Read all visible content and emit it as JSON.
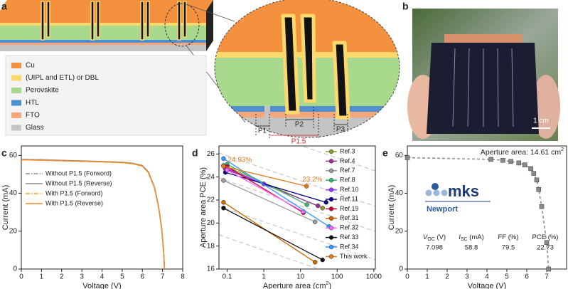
{
  "panel_labels": [
    "a",
    "b",
    "c",
    "d",
    "e"
  ],
  "panel_a": {
    "legend": [
      {
        "label": "Cu",
        "color": "#f4913f"
      },
      {
        "label": "(UIPL and ETL) or DBL",
        "color": "#fcd96a"
      },
      {
        "label": "Perovskite",
        "color": "#a9d98c"
      },
      {
        "label": "HTL",
        "color": "#4f8fd0"
      },
      {
        "label": "FTO",
        "color": "#f4a77a"
      },
      {
        "label": "Glass",
        "color": "#c4c4c4"
      }
    ],
    "scribes": [
      "P1",
      "P2",
      "P1.5",
      "P3"
    ]
  },
  "panel_b": {
    "scale_bar": "1 cm"
  },
  "chart_data": [
    {
      "type": "line",
      "xlabel": "Voltage (V)",
      "ylabel": "Current (mA)",
      "xlim": [
        0,
        8
      ],
      "xticks": [
        0,
        1,
        2,
        3,
        4,
        5,
        6,
        7,
        8
      ],
      "ylim": [
        0,
        65
      ],
      "yticks": [
        0,
        20,
        40,
        60
      ],
      "legend": "upper left",
      "x": [
        0,
        1,
        2,
        3,
        4,
        5,
        5.5,
        6,
        6.3,
        6.6,
        6.8,
        6.95,
        7.05,
        7.1
      ],
      "series": [
        {
          "name": "Without P1.5 (Forword)",
          "color": "#8c8c8c",
          "dash": "dashdot",
          "values": [
            57.8,
            57.6,
            57.3,
            57.0,
            56.7,
            56.3,
            55.8,
            54.5,
            51.0,
            43.0,
            33.0,
            22.0,
            10.0,
            0
          ]
        },
        {
          "name": "Without P1.5 (Reverse)",
          "color": "#8c8c8c",
          "dash": "solid",
          "values": [
            57.9,
            57.7,
            57.4,
            57.1,
            56.8,
            56.4,
            55.9,
            54.7,
            51.3,
            43.4,
            33.4,
            22.4,
            10.3,
            0
          ]
        },
        {
          "name": "With P1.5 (Forword)",
          "color": "#f0a030",
          "dash": "dashdot",
          "values": [
            57.6,
            57.4,
            57.1,
            56.8,
            56.5,
            56.1,
            55.6,
            54.3,
            50.8,
            42.8,
            32.8,
            21.8,
            9.8,
            0
          ]
        },
        {
          "name": "With P1.5 (Reverse)",
          "color": "#ec8a2c",
          "dash": "solid",
          "values": [
            57.7,
            57.5,
            57.2,
            56.9,
            56.6,
            56.2,
            55.7,
            54.4,
            51.0,
            43.1,
            33.1,
            22.1,
            10.0,
            0
          ]
        }
      ]
    },
    {
      "type": "line",
      "xlabel": [
        "Aperture area (cm",
        "2",
        ")"
      ],
      "ylabel": "Aperture area PCE (%)",
      "xlog": true,
      "xlim": [
        0.06,
        1100
      ],
      "xticks": [
        0.1,
        1,
        10,
        100,
        1000
      ],
      "ylim": [
        16,
        26.7
      ],
      "yticks": [
        16,
        18,
        20,
        22,
        24,
        26
      ],
      "legend": "upper right",
      "series": [
        {
          "name": "Ref.3",
          "color": "#8b9a2e",
          "marker": "circle",
          "x": [
            0.08,
            40
          ],
          "values": [
            25.0,
            21.3
          ]
        },
        {
          "name": "Ref.4",
          "color": "#993399",
          "marker": "circle",
          "x": [
            0.09,
            30
          ],
          "values": [
            24.7,
            21.5
          ]
        },
        {
          "name": "Ref.7",
          "color": "#9a9a9a",
          "marker": "circle",
          "x": [
            0.08,
            25
          ],
          "values": [
            23.7,
            20.1
          ]
        },
        {
          "name": "Ref.8",
          "color": "#3cb371",
          "marker": "circle",
          "x": [
            0.1,
            15
          ],
          "values": [
            25.1,
            21.6
          ]
        },
        {
          "name": "Ref.10",
          "color": "#9933ff",
          "marker": "circle",
          "x": [
            0.09,
            1
          ],
          "values": [
            24.8,
            23.4
          ]
        },
        {
          "name": "Ref.11",
          "color": "#000080",
          "marker": "circle",
          "x": [
            0.09,
            50
          ],
          "values": [
            24.4,
            21.8
          ]
        },
        {
          "name": "Ref.19",
          "color": "#cc0033",
          "marker": "circle",
          "x": [
            0.1,
            12
          ],
          "values": [
            24.9,
            20.9
          ]
        },
        {
          "name": "Ref.31",
          "color": "#cc6600",
          "marker": "circle",
          "x": [
            0.08,
            25
          ],
          "values": [
            21.8,
            16.6
          ]
        },
        {
          "name": "Ref.32",
          "color": "#ff66ff",
          "marker": "circle",
          "x": [
            0.1,
            12
          ],
          "values": [
            24.6,
            21.0
          ]
        },
        {
          "name": "Ref.33",
          "color": "#111111",
          "marker": "circle",
          "x": [
            0.08,
            40
          ],
          "values": [
            21.3,
            16.8
          ]
        },
        {
          "name": "Ref.34",
          "color": "#3399ff",
          "marker": "circle",
          "x": [
            0.08,
            60
          ],
          "values": [
            25.6,
            19.7
          ]
        },
        {
          "name": "This work",
          "color": "#e07b20",
          "marker": "circle",
          "x": [
            0.08,
            14.61
          ],
          "values": [
            24.93,
            23.2
          ],
          "value_labels": [
            "24.93%",
            "23.2%"
          ]
        }
      ]
    },
    {
      "type": "line",
      "xlabel": "Voltage (V)",
      "ylabel": "Current (mA)",
      "xlim": [
        0,
        8
      ],
      "xticks": [
        0,
        1,
        2,
        3,
        4,
        5,
        6,
        7
      ],
      "ylim": [
        0,
        65
      ],
      "yticks": [
        0,
        20,
        40,
        60
      ],
      "annotation": [
        "Aperture area: 14.61 cm",
        "2"
      ],
      "logo": {
        "name": "mks",
        "sub": "Newport"
      },
      "stats": [
        {
          "label": [
            "V",
            "OC",
            " (V)"
          ],
          "value": 7.098
        },
        {
          "label": [
            "I",
            "SC",
            " (mA)"
          ],
          "value": 58.8
        },
        {
          "label": [
            "FF (%)"
          ],
          "value": 79.5
        },
        {
          "label": [
            "PCE (%)"
          ],
          "value": 22.73
        }
      ],
      "x": [
        0,
        4.2,
        4.8,
        5.2,
        5.6,
        5.9,
        6.2,
        6.35,
        6.5,
        6.6,
        6.75,
        7.0,
        7.098
      ],
      "series": [
        {
          "name": null,
          "color": "#8a8a8a",
          "dash": "dashed",
          "marker": "square",
          "values": [
            58.8,
            57.9,
            57.4,
            56.8,
            56.0,
            55.0,
            53.0,
            50.5,
            47.0,
            42.0,
            33.0,
            14.0,
            0
          ]
        }
      ]
    }
  ]
}
